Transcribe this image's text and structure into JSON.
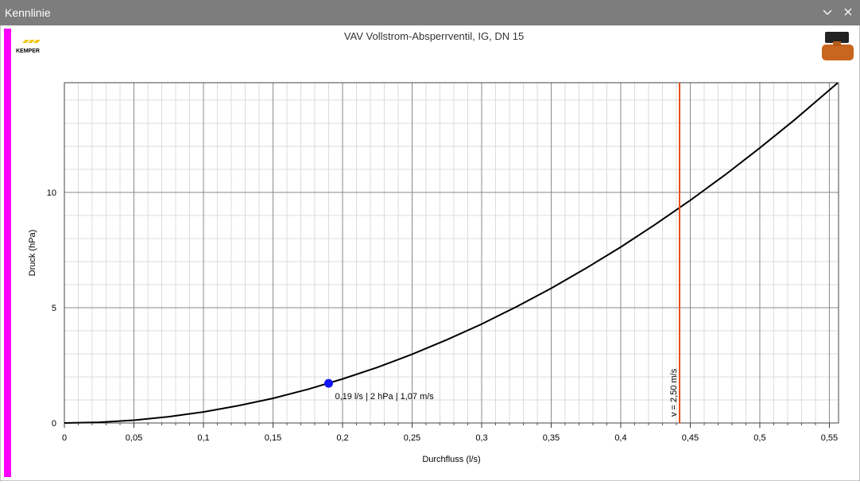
{
  "window": {
    "title": "Kennlinie"
  },
  "logo": "KEMPER",
  "chart_data": {
    "type": "line",
    "title": "VAV Vollstrom-Absperrventil, IG, DN 15",
    "xlabel": "Durchfluss (l/s)",
    "ylabel": "Druck (hPa)",
    "x": [
      0,
      0.025,
      0.05,
      0.075,
      0.1,
      0.125,
      0.15,
      0.175,
      0.2,
      0.225,
      0.25,
      0.275,
      0.3,
      0.325,
      0.35,
      0.375,
      0.4,
      0.425,
      0.45,
      0.475,
      0.5,
      0.525,
      0.556
    ],
    "series": [
      {
        "color": "#000000",
        "values": [
          0,
          0.03,
          0.12,
          0.27,
          0.48,
          0.75,
          1.07,
          1.46,
          1.91,
          2.41,
          2.98,
          3.61,
          4.29,
          5.04,
          5.84,
          6.71,
          7.63,
          8.62,
          9.66,
          10.76,
          11.93,
          13.15,
          14.75
        ]
      }
    ],
    "xlim": [
      0,
      0.5566
    ],
    "ylim": [
      0,
      14.76
    ],
    "xticks": [
      0,
      {
        "value": 0.05,
        "label": "0,05"
      },
      {
        "value": 0.1,
        "label": "0,1"
      },
      {
        "value": 0.15,
        "label": "0,15"
      },
      {
        "value": 0.2,
        "label": "0,2"
      },
      {
        "value": 0.25,
        "label": "0,25"
      },
      {
        "value": 0.3,
        "label": "0,3"
      },
      {
        "value": 0.35,
        "label": "0,35"
      },
      {
        "value": 0.4,
        "label": "0,4"
      },
      {
        "value": 0.45,
        "label": "0,45"
      },
      {
        "value": 0.5,
        "label": "0,5"
      },
      {
        "value": 0.55,
        "label": "0,55"
      }
    ],
    "yticks": [
      0,
      5,
      10
    ],
    "xminorticks": [
      0.01,
      0.02,
      0.03,
      0.04,
      0.06,
      0.07,
      0.08,
      0.09,
      0.11,
      0.12,
      0.13,
      0.14,
      0.16,
      0.17,
      0.18,
      0.19,
      0.21,
      0.22,
      0.23,
      0.24,
      0.26,
      0.27,
      0.28,
      0.29,
      0.31,
      0.32,
      0.33,
      0.34,
      0.36,
      0.37,
      0.38,
      0.39,
      0.41,
      0.42,
      0.43,
      0.44,
      0.46,
      0.47,
      0.48,
      0.49,
      0.51,
      0.52,
      0.53,
      0.54
    ],
    "yminorticks": [
      1,
      2,
      3,
      4,
      6,
      7,
      8,
      9,
      11,
      12,
      13,
      14
    ],
    "grid": true,
    "vline": {
      "value": 0.4423,
      "label": "v = 2,50 m/s",
      "color": "#e8501e"
    },
    "point": {
      "x": 0.19,
      "y": 1.72,
      "label": "0,19 l/s | 2 hPa | 1,07 m/s",
      "color": "#1414f5"
    }
  }
}
